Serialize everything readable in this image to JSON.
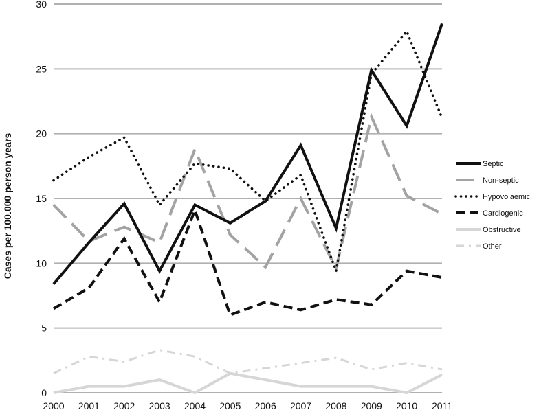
{
  "chart_data": {
    "type": "line",
    "title": "",
    "xlabel": "",
    "ylabel": "Cases per 100.000 person years",
    "ylim": [
      0,
      30
    ],
    "yticks": [
      0,
      5,
      10,
      15,
      20,
      25,
      30
    ],
    "grid": "horizontal",
    "legend_position": "right",
    "categories": [
      "2000",
      "2001",
      "2002",
      "2003",
      "2004",
      "2005",
      "2006",
      "2007",
      "2008",
      "2009",
      "2010",
      "2011"
    ],
    "series": [
      {
        "name": "Septic",
        "color": "#111111",
        "line_style": "solid",
        "values": [
          8.4,
          11.6,
          14.6,
          9.4,
          14.5,
          13.1,
          14.8,
          19.1,
          12.7,
          24.9,
          20.6,
          28.5
        ]
      },
      {
        "name": "Non-septic",
        "color": "#a3a3a3",
        "line_style": "long-dash",
        "values": [
          14.5,
          11.7,
          12.8,
          11.6,
          18.8,
          12.2,
          9.7,
          15.0,
          9.6,
          21.3,
          15.2,
          13.8
        ]
      },
      {
        "name": "Hypovolaemic",
        "color": "#111111",
        "line_style": "dotted",
        "values": [
          16.4,
          18.2,
          19.7,
          14.5,
          17.7,
          17.3,
          14.8,
          16.8,
          9.4,
          24.6,
          27.9,
          21.2
        ]
      },
      {
        "name": "Cardiogenic",
        "color": "#111111",
        "line_style": "dashed",
        "values": [
          6.5,
          8.1,
          11.9,
          7.0,
          14.1,
          6.0,
          7.0,
          6.4,
          7.2,
          6.8,
          9.4,
          8.9
        ]
      },
      {
        "name": "Obstructive",
        "color": "#d6d6d6",
        "line_style": "solid",
        "values": [
          0.0,
          0.5,
          0.5,
          1.0,
          0.0,
          1.5,
          1.0,
          0.5,
          0.5,
          0.5,
          0.0,
          1.4
        ]
      },
      {
        "name": "Other",
        "color": "#d6d6d6",
        "line_style": "dash-dot",
        "values": [
          1.5,
          2.8,
          2.4,
          3.3,
          2.8,
          1.5,
          1.9,
          2.3,
          2.7,
          1.8,
          2.3,
          1.8
        ]
      }
    ]
  }
}
